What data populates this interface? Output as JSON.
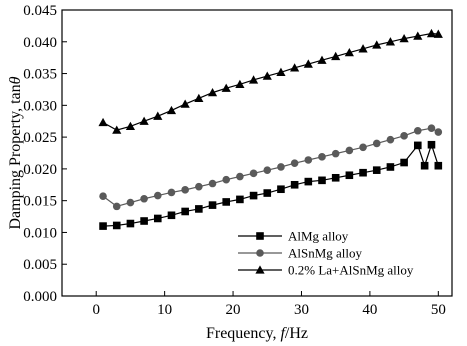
{
  "chart_data": {
    "type": "line",
    "xlabel": "Frequency, ",
    "xlabel_var": "f",
    "xlabel_unit": "/Hz",
    "ylabel": "Damping Property, tan",
    "ylabel_var": "θ",
    "xlim": [
      -5,
      52
    ],
    "ylim": [
      0.0,
      0.045
    ],
    "xticks": [
      0,
      10,
      20,
      30,
      40,
      50
    ],
    "yticks": [
      "0.000",
      "0.005",
      "0.010",
      "0.015",
      "0.020",
      "0.025",
      "0.030",
      "0.035",
      "0.040",
      "0.045"
    ],
    "legend_position": "bottom-right",
    "series": [
      {
        "name": "AlMg alloy",
        "marker": "square",
        "x": [
          1,
          3,
          5,
          7,
          9,
          11,
          13,
          15,
          17,
          19,
          21,
          23,
          25,
          27,
          29,
          31,
          33,
          35,
          37,
          39,
          41,
          43,
          45,
          47,
          48,
          49,
          50
        ],
        "y": [
          0.011,
          0.0111,
          0.0114,
          0.0118,
          0.0122,
          0.0127,
          0.0133,
          0.0137,
          0.0143,
          0.0148,
          0.0152,
          0.0158,
          0.0162,
          0.0168,
          0.0175,
          0.018,
          0.0182,
          0.0186,
          0.019,
          0.0194,
          0.0198,
          0.0203,
          0.021,
          0.0237,
          0.0205,
          0.0238,
          0.0205
        ]
      },
      {
        "name": "AlSnMg alloy",
        "marker": "circle",
        "x": [
          1,
          3,
          5,
          7,
          9,
          11,
          13,
          15,
          17,
          19,
          21,
          23,
          25,
          27,
          29,
          31,
          33,
          35,
          37,
          39,
          41,
          43,
          45,
          47,
          49,
          50
        ],
        "y": [
          0.0157,
          0.0141,
          0.0147,
          0.0153,
          0.0158,
          0.0163,
          0.0167,
          0.0172,
          0.0177,
          0.0183,
          0.0188,
          0.0193,
          0.0198,
          0.0203,
          0.0209,
          0.0214,
          0.0219,
          0.0224,
          0.0229,
          0.0234,
          0.024,
          0.0246,
          0.0252,
          0.026,
          0.0264,
          0.0258
        ]
      },
      {
        "name": "0.2% La+AlSnMg alloy",
        "marker": "triangle",
        "x": [
          1,
          3,
          5,
          7,
          9,
          11,
          13,
          15,
          17,
          19,
          21,
          23,
          25,
          27,
          29,
          31,
          33,
          35,
          37,
          39,
          41,
          43,
          45,
          47,
          49,
          50
        ],
        "y": [
          0.0273,
          0.0261,
          0.0267,
          0.0275,
          0.0283,
          0.0292,
          0.0302,
          0.0311,
          0.032,
          0.0327,
          0.0333,
          0.034,
          0.0346,
          0.0352,
          0.0359,
          0.0365,
          0.0371,
          0.0377,
          0.0383,
          0.0389,
          0.0395,
          0.04,
          0.0405,
          0.0409,
          0.0413,
          0.0412
        ]
      }
    ]
  }
}
